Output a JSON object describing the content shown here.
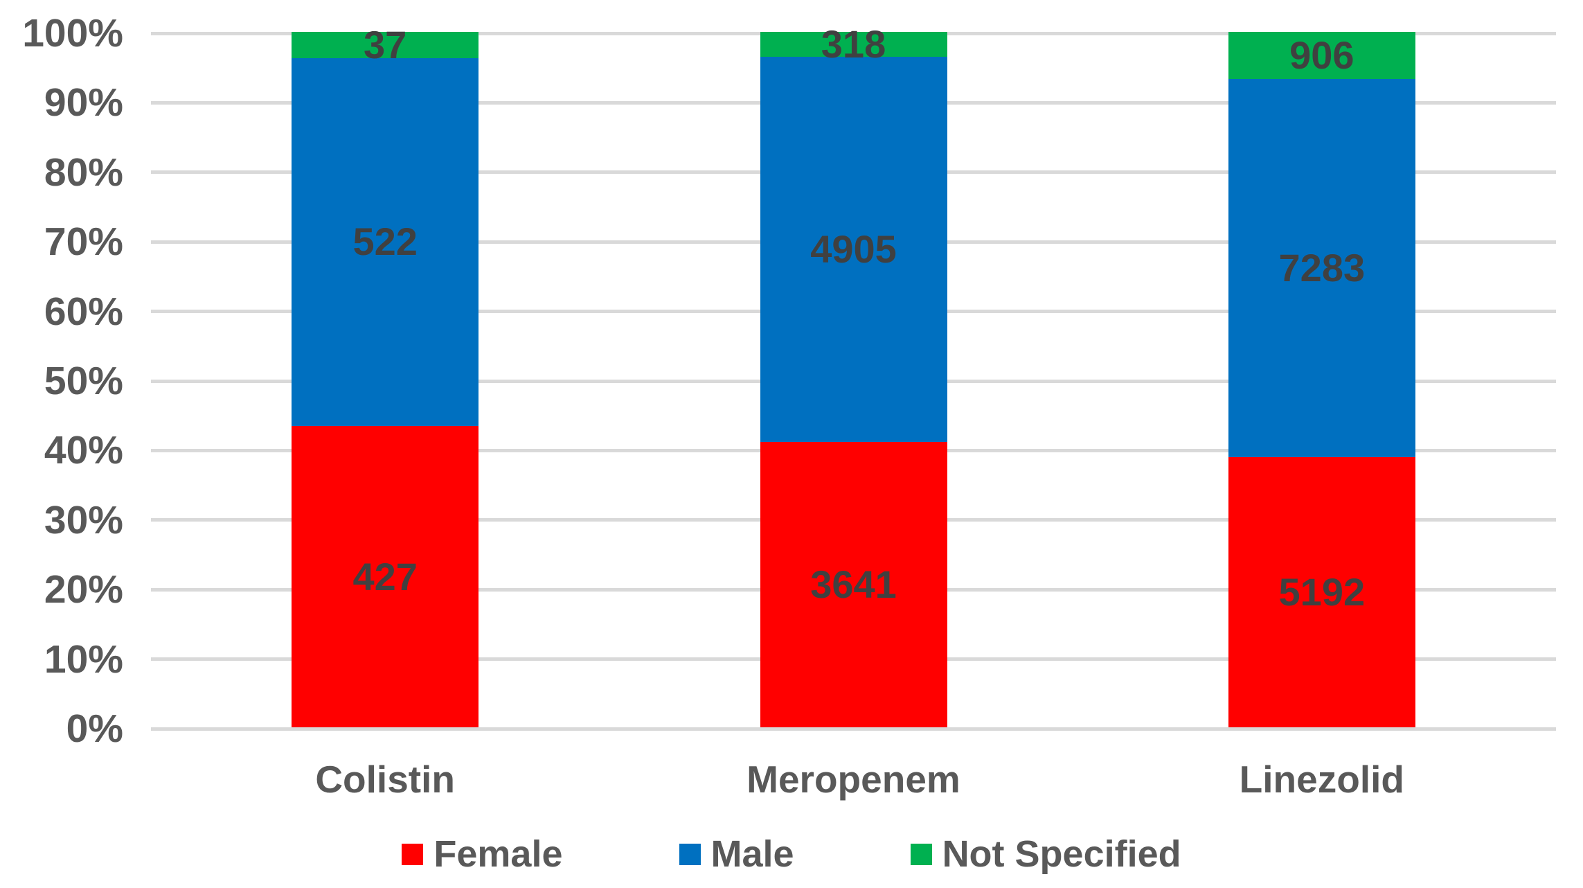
{
  "chart_data": {
    "type": "bar",
    "variant": "100%-stacked-column",
    "title": "",
    "xlabel": "",
    "ylabel": "",
    "grid": true,
    "categories": [
      "Colistin",
      "Meropenem",
      "Linezolid"
    ],
    "series": [
      {
        "name": "Female",
        "color": "#FF0000",
        "values": [
          427,
          3641,
          5192
        ]
      },
      {
        "name": "Male",
        "color": "#0070C0",
        "values": [
          522,
          4905,
          7283
        ]
      },
      {
        "name": "Not Specified",
        "color": "#00B050",
        "values": [
          37,
          318,
          906
        ]
      }
    ],
    "y_axis": {
      "min": 0,
      "max": 100,
      "unit": "%",
      "tick_labels": [
        "0%",
        "10%",
        "20%",
        "30%",
        "40%",
        "50%",
        "60%",
        "70%",
        "80%",
        "90%",
        "100%"
      ]
    },
    "legend": {
      "position": "bottom",
      "entries": [
        {
          "label": "Female",
          "color": "#FF0000"
        },
        {
          "label": "Male",
          "color": "#0070C0"
        },
        {
          "label": "Not Specified",
          "color": "#00B050"
        }
      ]
    }
  },
  "colors": {
    "background": "#FFFFFF",
    "gridline": "#D9D9D9",
    "axis_text": "#595959",
    "data_label_text": "#404040"
  }
}
